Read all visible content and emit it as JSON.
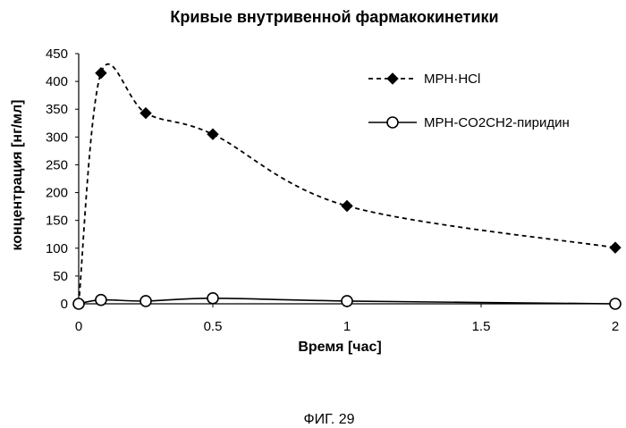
{
  "chart_data": {
    "type": "line",
    "title": "Кривые внутривенной фармакокинетики",
    "xlabel": "Время [час]",
    "ylabel": "концентрация [нг/мл]",
    "xlim": [
      0,
      2
    ],
    "ylim": [
      0,
      450
    ],
    "xticks": [
      "0",
      "0.5",
      "1",
      "1.5",
      "2"
    ],
    "yticks": [
      "0",
      "50",
      "100",
      "150",
      "200",
      "250",
      "300",
      "350",
      "400",
      "450"
    ],
    "legend_position": "top-right",
    "grid": false,
    "series": [
      {
        "name": "MPH·HCl",
        "marker": "diamond",
        "line_style": "dashed",
        "x": [
          0,
          0.083,
          0.25,
          0.5,
          1,
          2
        ],
        "y": [
          0,
          415,
          343,
          305,
          176,
          101
        ]
      },
      {
        "name": "MPH-CO2CH2-пиридин",
        "marker": "circle",
        "line_style": "solid",
        "x": [
          0,
          0.083,
          0.25,
          0.5,
          1,
          2
        ],
        "y": [
          0,
          7,
          5,
          10,
          5,
          0
        ]
      }
    ]
  },
  "figure_caption": "ФИГ. 29"
}
